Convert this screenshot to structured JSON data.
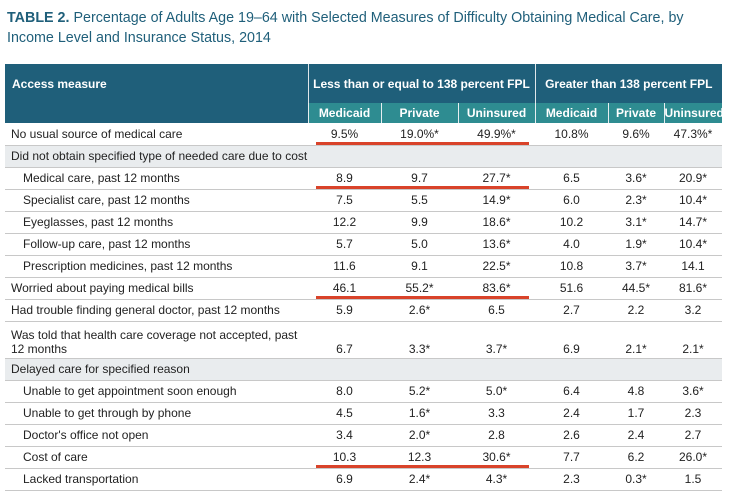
{
  "title": {
    "label": "TABLE 2.",
    "text": " Percentage of Adults Age 19–64 with Selected Measures of Difficulty Obtaining Medical Care, by Income Level and Insurance Status, 2014"
  },
  "table": {
    "access_header": "Access measure",
    "group1": "Less than or equal to 138 percent FPL",
    "group2": "Greater than 138 percent FPL",
    "columns": [
      "Medicaid",
      "Private",
      "Uninsured",
      "Medicaid",
      "Private",
      "Uninsured"
    ],
    "rows": [
      {
        "label": "No usual source of medical care",
        "values": [
          "9.5%",
          "19.0%*",
          "49.9%*",
          "10.8%",
          "9.6%",
          "47.3%*"
        ]
      },
      {
        "section": "Did not obtain specified type of needed care due to cost"
      },
      {
        "label": "Medical care, past 12 months",
        "values": [
          "8.9",
          "9.7",
          "27.7*",
          "6.5",
          "3.6*",
          "20.9*"
        ]
      },
      {
        "label": "Specialist care, past 12 months",
        "values": [
          "7.5",
          "5.5",
          "14.9*",
          "6.0",
          "2.3*",
          "10.4*"
        ]
      },
      {
        "label": "Eyeglasses, past 12 months",
        "values": [
          "12.2",
          "9.9",
          "18.6*",
          "10.2",
          "3.1*",
          "14.7*"
        ]
      },
      {
        "label": "Follow-up care, past 12 months",
        "values": [
          "5.7",
          "5.0",
          "13.6*",
          "4.0",
          "1.9*",
          "10.4*"
        ]
      },
      {
        "label": "Prescription medicines, past 12 months",
        "values": [
          "11.6",
          "9.1",
          "22.5*",
          "10.8",
          "3.7*",
          "14.1"
        ]
      },
      {
        "label": "Worried about paying medical bills",
        "values": [
          "46.1",
          "55.2*",
          "83.6*",
          "51.6",
          "44.5*",
          "81.6*"
        ]
      },
      {
        "label": "Had trouble finding general doctor, past 12 months",
        "values": [
          "5.9",
          "2.6*",
          "6.5",
          "2.7",
          "2.2",
          "3.2"
        ]
      },
      {
        "label": "Was told that health care coverage not accepted, past 12 months",
        "values": [
          "6.7",
          "3.3*",
          "3.7*",
          "6.9",
          "2.1*",
          "2.1*"
        ]
      },
      {
        "section": "Delayed care for specified reason"
      },
      {
        "label": "Unable to get appointment soon enough",
        "values": [
          "8.0",
          "5.2*",
          "5.0*",
          "6.4",
          "4.8",
          "3.6*"
        ]
      },
      {
        "label": "Unable to get through by phone",
        "values": [
          "4.5",
          "1.6*",
          "3.3",
          "2.4",
          "1.7",
          "2.3"
        ]
      },
      {
        "label": "Doctor's office not open",
        "values": [
          "3.4",
          "2.0*",
          "2.8",
          "2.6",
          "2.4",
          "2.7"
        ]
      },
      {
        "label": "Cost of care",
        "values": [
          "10.3",
          "12.3",
          "30.6*",
          "7.7",
          "6.2",
          "26.0*"
        ]
      },
      {
        "label": "Lacked transportation",
        "values": [
          "6.9",
          "2.4*",
          "4.3*",
          "2.3",
          "0.3*",
          "1.5"
        ]
      }
    ]
  },
  "colors": {
    "header": "#1f5f7a",
    "subheader": "#2e8c91",
    "section": "#e9ecee",
    "highlight": "#d9432a"
  }
}
